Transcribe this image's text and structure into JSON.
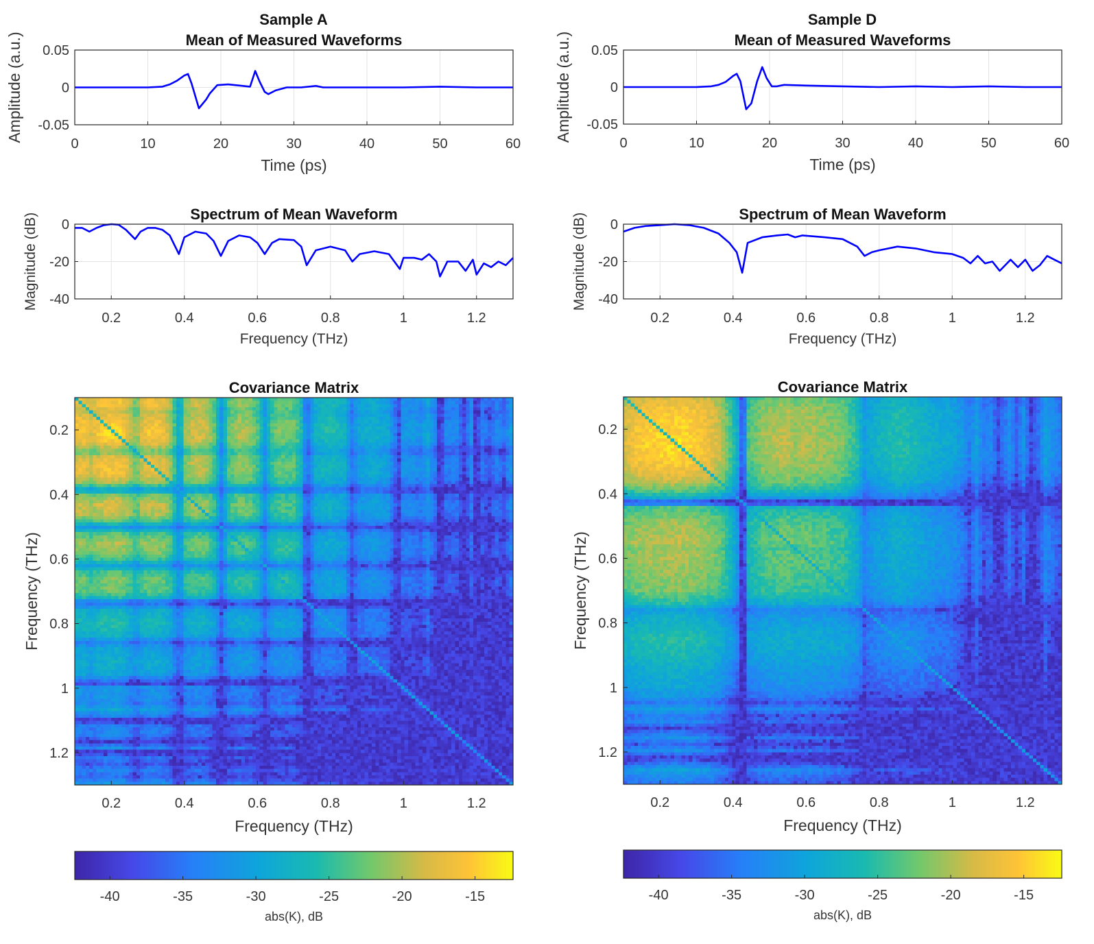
{
  "chart_data": [
    {
      "sample": "Sample A",
      "waveform": {
        "type": "line",
        "title": "Mean of Measured Waveforms",
        "xlabel": "Time (ps)",
        "ylabel": "Amplitude (a.u.)",
        "xlim": [
          0,
          60
        ],
        "ylim": [
          -0.05,
          0.05
        ],
        "xticks": [
          "0",
          "10",
          "20",
          "30",
          "40",
          "50",
          "60"
        ],
        "yticks": [
          "0.05",
          "0",
          "-0.05"
        ],
        "grid": true,
        "color": "#0000ff",
        "x": [
          0,
          5,
          10,
          12,
          13,
          14,
          15,
          15.5,
          16,
          17,
          18,
          18.5,
          19.5,
          21,
          23,
          24,
          24.7,
          25.3,
          26,
          26.5,
          27.5,
          29,
          31,
          33,
          34,
          40,
          45,
          50,
          55,
          60
        ],
        "y": [
          0,
          0,
          0,
          0.001,
          0.004,
          0.009,
          0.016,
          0.018,
          0.005,
          -0.028,
          -0.016,
          -0.008,
          0.003,
          0.004,
          0.002,
          0.001,
          0.022,
          0.008,
          -0.006,
          -0.009,
          -0.004,
          0,
          0,
          0.002,
          0,
          0,
          0,
          0.001,
          0,
          0
        ]
      },
      "spectrum": {
        "type": "line",
        "title": "Spectrum of Mean Waveform",
        "xlabel": "Frequency (THz)",
        "ylabel": "Magnitude (dB)",
        "xlim": [
          0.1,
          1.3
        ],
        "ylim": [
          -40,
          0
        ],
        "xticks": [
          "0.2",
          "0.4",
          "0.6",
          "0.8",
          "1",
          "1.2"
        ],
        "yticks": [
          "0",
          "-20",
          "-40"
        ],
        "grid": true,
        "color": "#0000ff",
        "x": [
          0.1,
          0.12,
          0.14,
          0.16,
          0.18,
          0.2,
          0.22,
          0.24,
          0.265,
          0.28,
          0.3,
          0.32,
          0.34,
          0.36,
          0.385,
          0.4,
          0.43,
          0.46,
          0.48,
          0.5,
          0.52,
          0.55,
          0.58,
          0.6,
          0.62,
          0.64,
          0.66,
          0.7,
          0.72,
          0.735,
          0.76,
          0.8,
          0.84,
          0.86,
          0.88,
          0.92,
          0.96,
          0.99,
          1.0,
          1.03,
          1.05,
          1.07,
          1.09,
          1.1,
          1.12,
          1.15,
          1.17,
          1.19,
          1.2,
          1.22,
          1.24,
          1.26,
          1.28,
          1.3
        ],
        "y": [
          -2,
          -2,
          -4,
          -2,
          -0.5,
          0,
          -0.3,
          -3,
          -8,
          -4,
          -2,
          -2,
          -3,
          -6,
          -16,
          -7,
          -4,
          -5,
          -9,
          -17,
          -9,
          -6,
          -7,
          -10,
          -16,
          -10,
          -8,
          -8.5,
          -12,
          -22,
          -14,
          -12,
          -14,
          -20,
          -16,
          -14.5,
          -16,
          -24,
          -18,
          -18,
          -19,
          -16,
          -20,
          -28,
          -20,
          -20,
          -25,
          -19,
          -27,
          -21,
          -23,
          -20,
          -22,
          -18
        ]
      },
      "covariance": {
        "type": "heatmap",
        "title": "Covariance Matrix",
        "xlabel": "Frequency (THz)",
        "ylabel": "Frequency (THz)",
        "xlim": [
          0.1,
          1.3
        ],
        "ylim": [
          0.1,
          1.3
        ],
        "xticks": [
          "0.2",
          "0.4",
          "0.6",
          "0.8",
          "1",
          "1.2"
        ],
        "yticks": [
          "0.2",
          "0.4",
          "0.6",
          "0.8",
          "1",
          "1.2"
        ],
        "colormap": "parula",
        "clim": [
          -42.4,
          -12.4
        ],
        "colorbar": {
          "label": "abs(K), dB",
          "ticks": [
            "-40",
            "-35",
            "-30",
            "-25",
            "-20",
            "-15"
          ],
          "placement": "bottom"
        }
      }
    },
    {
      "sample": "Sample D",
      "waveform": {
        "type": "line",
        "title": "Mean of Measured Waveforms",
        "xlabel": "Time (ps)",
        "ylabel": "Amplitude (a.u.)",
        "xlim": [
          0,
          60
        ],
        "ylim": [
          -0.05,
          0.05
        ],
        "xticks": [
          "0",
          "10",
          "20",
          "30",
          "40",
          "50",
          "60"
        ],
        "yticks": [
          "0.05",
          "0",
          "-0.05"
        ],
        "grid": true,
        "color": "#0000ff",
        "x": [
          0,
          5,
          10,
          12,
          13,
          14,
          15,
          15.5,
          16,
          16.8,
          17.5,
          18.3,
          19,
          19.6,
          20.3,
          21,
          22,
          25,
          30,
          35,
          40,
          45,
          50,
          55,
          60
        ],
        "y": [
          0,
          0,
          0,
          0.001,
          0.003,
          0.007,
          0.015,
          0.018,
          0.008,
          -0.03,
          -0.022,
          0.008,
          0.027,
          0.012,
          0.001,
          0.001,
          0.003,
          0.002,
          0.001,
          0,
          0.001,
          0,
          0.001,
          0,
          0
        ]
      },
      "spectrum": {
        "type": "line",
        "title": "Spectrum of Mean Waveform",
        "xlabel": "Frequency (THz)",
        "ylabel": "Magnitude (dB)",
        "xlim": [
          0.1,
          1.3
        ],
        "ylim": [
          -40,
          0
        ],
        "xticks": [
          "0.2",
          "0.4",
          "0.6",
          "0.8",
          "1",
          "1.2"
        ],
        "yticks": [
          "0",
          "-20",
          "-40"
        ],
        "grid": true,
        "color": "#0000ff",
        "x": [
          0.1,
          0.13,
          0.16,
          0.2,
          0.24,
          0.28,
          0.32,
          0.36,
          0.39,
          0.41,
          0.425,
          0.44,
          0.48,
          0.52,
          0.55,
          0.57,
          0.59,
          0.65,
          0.7,
          0.74,
          0.76,
          0.78,
          0.8,
          0.85,
          0.9,
          0.95,
          1.0,
          1.03,
          1.05,
          1.07,
          1.09,
          1.11,
          1.13,
          1.16,
          1.18,
          1.2,
          1.22,
          1.24,
          1.26,
          1.28,
          1.3
        ],
        "y": [
          -4,
          -2,
          -1,
          -0.5,
          0,
          -0.5,
          -2,
          -5,
          -10,
          -15,
          -26,
          -10,
          -7,
          -6,
          -5.5,
          -7,
          -6,
          -7,
          -8,
          -12,
          -17,
          -15,
          -14,
          -12,
          -13,
          -15,
          -16,
          -18,
          -21,
          -17,
          -21,
          -20,
          -25,
          -19,
          -23,
          -19,
          -25,
          -22,
          -17,
          -19,
          -21
        ]
      },
      "covariance": {
        "type": "heatmap",
        "title": "Covariance Matrix",
        "xlabel": "Frequency (THz)",
        "ylabel": "Frequency (THz)",
        "xlim": [
          0.1,
          1.3
        ],
        "ylim": [
          0.1,
          1.3
        ],
        "xticks": [
          "0.2",
          "0.4",
          "0.6",
          "0.8",
          "1",
          "1.2"
        ],
        "yticks": [
          "0.2",
          "0.4",
          "0.6",
          "0.8",
          "1",
          "1.2"
        ],
        "colormap": "parula",
        "clim": [
          -42.4,
          -12.4
        ],
        "colorbar": {
          "label": "abs(K), dB",
          "ticks": [
            "-40",
            "-35",
            "-30",
            "-25",
            "-20",
            "-15"
          ],
          "placement": "bottom"
        }
      }
    }
  ]
}
